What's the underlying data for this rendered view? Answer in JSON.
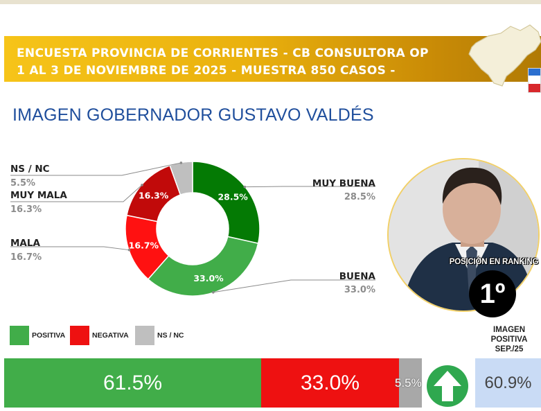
{
  "header": {
    "line1": "ENCUESTA PROVINCIA DE CORRIENTES - CB CONSULTORA OP",
    "line2": "1 AL 3 DE NOVIEMBRE DE 2025 - MUESTRA 850 CASOS -"
  },
  "title": "IMAGEN GOBERNADOR  GUSTAVO VALDÉS",
  "chart_data": {
    "type": "donut",
    "categories": [
      "MUY BUENA",
      "BUENA",
      "MALA",
      "MUY MALA",
      "NS / NC"
    ],
    "values": [
      28.5,
      33.0,
      16.7,
      16.3,
      5.5
    ],
    "value_labels": [
      "28.5%",
      "33.0%",
      "16.7%",
      "16.3%",
      "5.5%"
    ],
    "side_labels": [
      "28.5%",
      "33.0%",
      "16.7%",
      "16.3%",
      "5.5%"
    ],
    "colors": [
      "#047a04",
      "#41ad49",
      "#ff1111",
      "#c10a0a",
      "#bfbfbf"
    ],
    "legend": [
      {
        "label": "POSITIVA",
        "color": "#41ad49"
      },
      {
        "label": "NEGATIVA",
        "color": "#ee1111"
      },
      {
        "label": "NS / NC",
        "color": "#bfbfbf"
      }
    ],
    "summary": {
      "categories": [
        "POSITIVA",
        "NEGATIVA",
        "NS / NC"
      ],
      "values": [
        61.5,
        33.0,
        5.5
      ],
      "value_labels": [
        "61.5%",
        "33.0%",
        "5.5%"
      ],
      "colors": [
        "#41ad49",
        "#ee1111",
        "#a8a8a8"
      ]
    }
  },
  "ranking": {
    "caption": "POSICIÓN EN RANKING",
    "position": "1º"
  },
  "previous": {
    "label_lines": [
      "IMAGEN",
      "POSITIVA",
      "SEP./25"
    ],
    "value": "60.9%",
    "trend": "up"
  }
}
